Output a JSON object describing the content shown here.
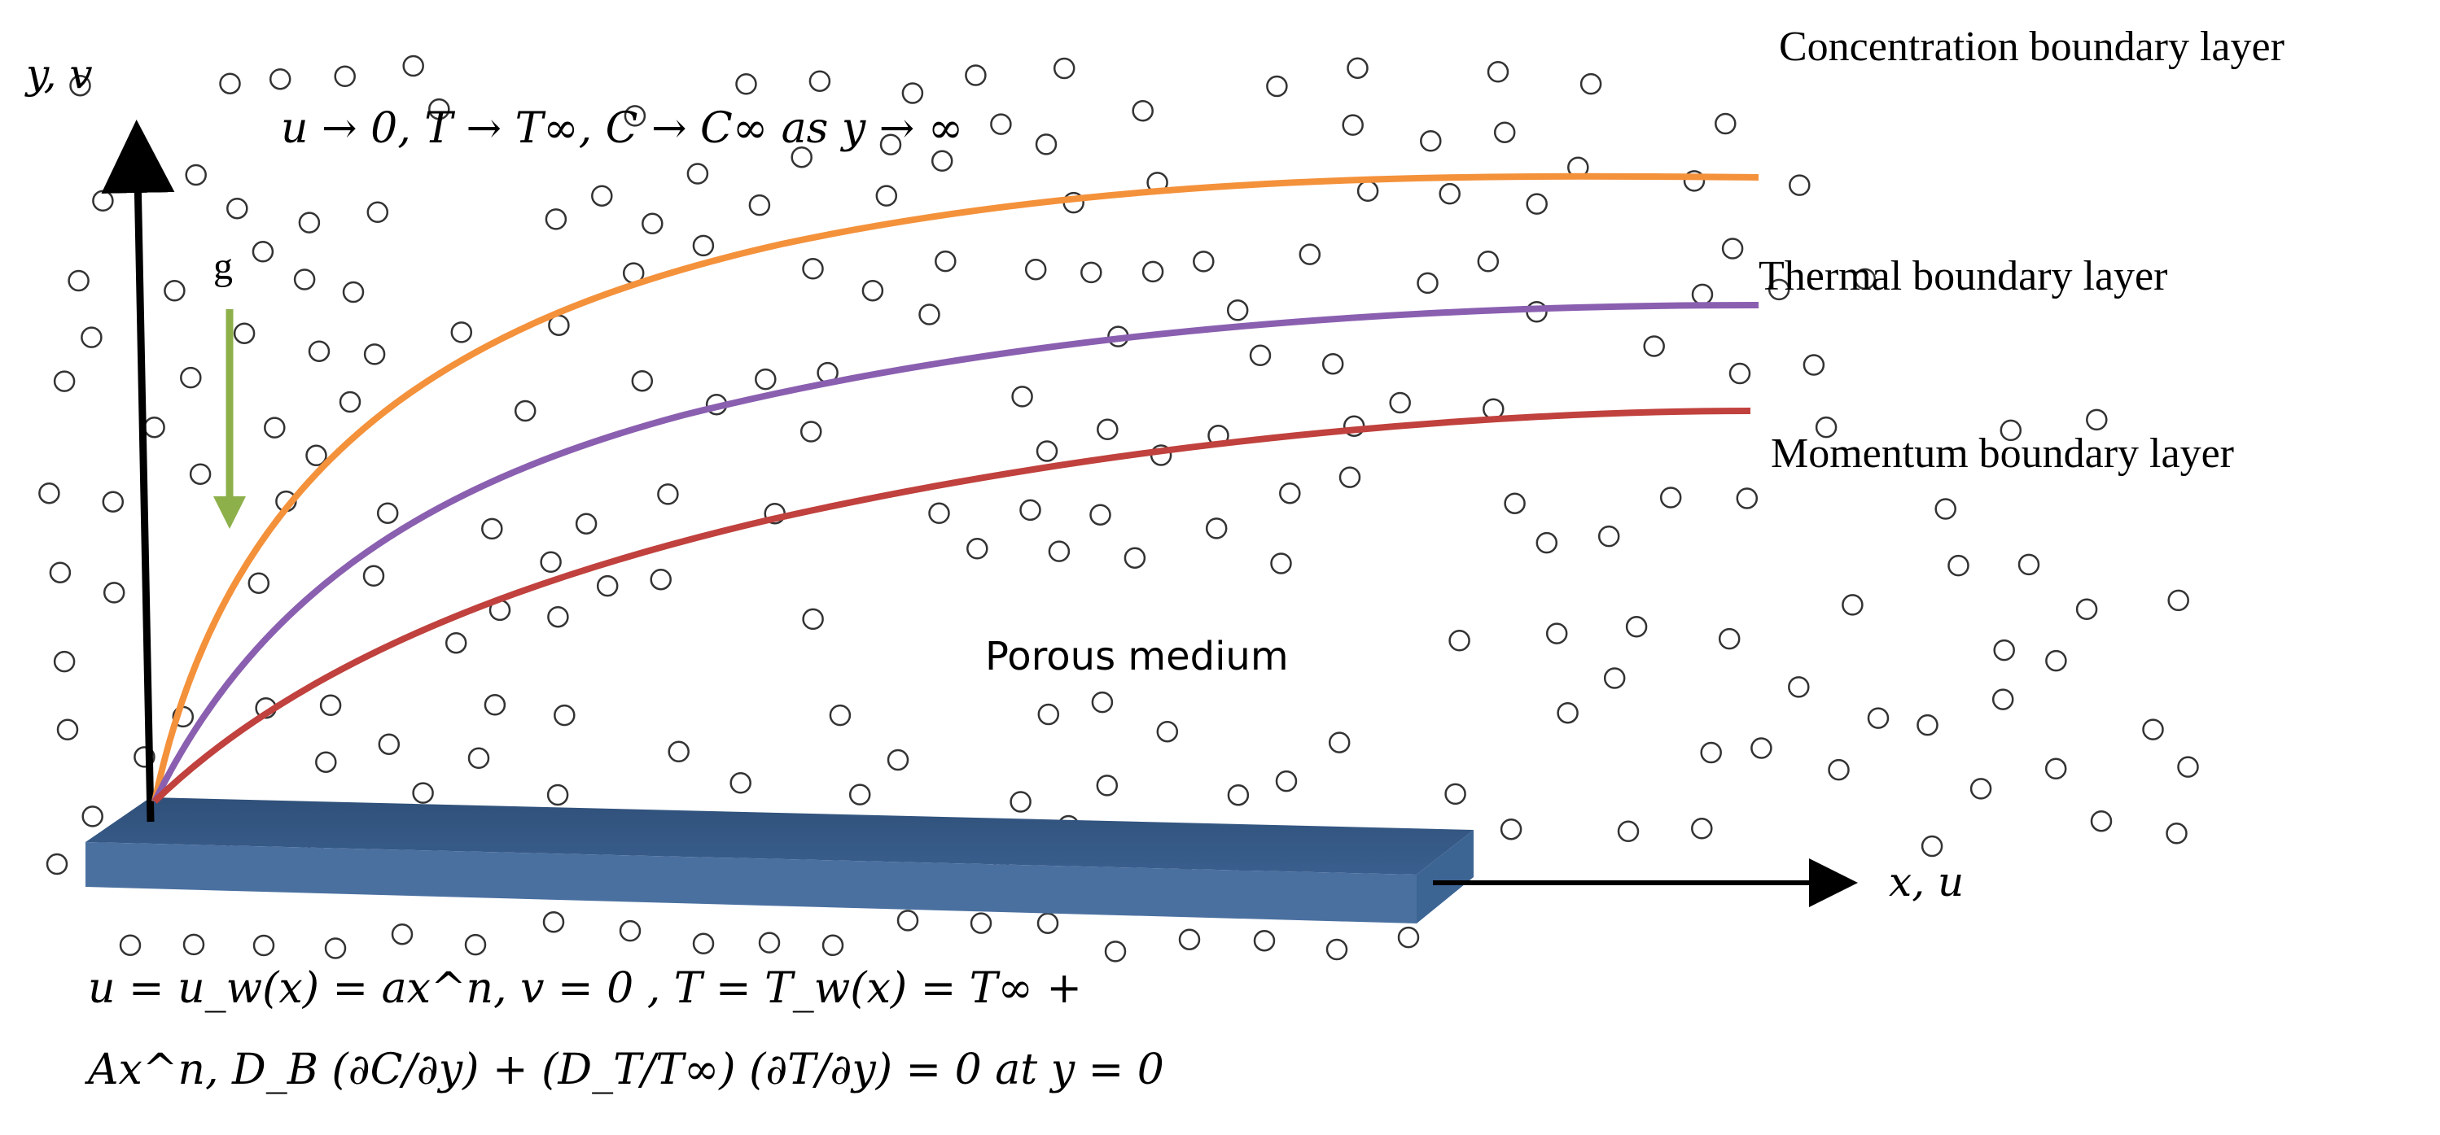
{
  "axes": {
    "y_label": "y, v",
    "x_label": "x, u"
  },
  "gravity_label": "g",
  "far_field_condition": "u → 0, T → T∞, C → C∞ as y → ∞",
  "boundary_layers": [
    {
      "key": "concentration",
      "label": "Concentration boundary layer",
      "color": "#f4913b"
    },
    {
      "key": "thermal",
      "label": "Thermal boundary layer",
      "color": "#8a5fb0"
    },
    {
      "key": "momentum",
      "label": "Momentum boundary layer",
      "color": "#c0413d"
    }
  ],
  "medium_label": "Porous medium",
  "plate_color": "#3a5f8e",
  "gravity_color": "#8db04b",
  "wall_condition": {
    "line1": "u = u_w(x) = ax^n,  v = 0 , T = T_w(x) = T∞ +",
    "line2": "Ax^n, D_B (∂C/∂y) + (D_T/T∞) (∂T/∂y) = 0 at y = 0"
  }
}
